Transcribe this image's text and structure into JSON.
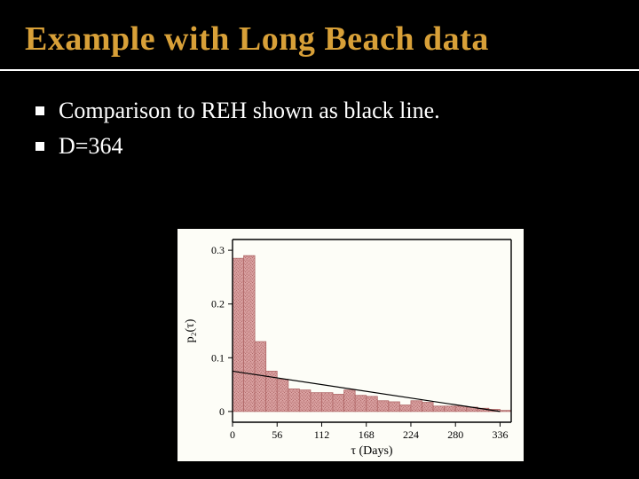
{
  "title": "Example with Long Beach data",
  "title_color": "#d8a038",
  "title_fontsize": 38,
  "rule_color": "#ffffff",
  "background_color": "#000000",
  "bullets": [
    {
      "text": "Comparison to REH shown as black line."
    },
    {
      "text": "D=364"
    }
  ],
  "bullet_text_color": "#ffffff",
  "bullet_fontsize": 26,
  "bullet_marker_color": "#ffffff",
  "chart": {
    "type": "histogram",
    "chart_background": "#fdfdf7",
    "plot_background": "#fdfdf7",
    "bar_fill": "#d9a0a0",
    "bar_stroke": "#b06868",
    "axis_color": "#000000",
    "axis_linewidth": 1.4,
    "tick_fontsize": 12,
    "label_fontsize": 14,
    "xlabel": "τ (Days)",
    "ylabel": "p₂(τ)",
    "xlim": [
      0,
      350
    ],
    "ylim": [
      -0.02,
      0.32
    ],
    "xtick_positions": [
      0,
      56,
      112,
      168,
      224,
      280,
      336
    ],
    "xtick_labels": [
      "0",
      "56",
      "112",
      "168",
      "224",
      "280",
      "336"
    ],
    "ytick_positions": [
      0,
      0.1,
      0.2,
      0.3
    ],
    "ytick_labels": [
      "0",
      "0.1",
      "0.2",
      "0.3"
    ],
    "bin_width": 14,
    "bin_edges_start": 0,
    "bar_values": [
      0.285,
      0.29,
      0.13,
      0.075,
      0.06,
      0.042,
      0.04,
      0.035,
      0.035,
      0.032,
      0.04,
      0.03,
      0.028,
      0.02,
      0.018,
      0.012,
      0.02,
      0.017,
      0.01,
      0.01,
      0.01,
      0.008,
      0.006,
      0.004,
      0.002
    ],
    "reh_line": {
      "color": "#000000",
      "linewidth": 1.2,
      "x0": 0,
      "y0": 0.075,
      "x1": 336,
      "y1": 0.0
    }
  }
}
